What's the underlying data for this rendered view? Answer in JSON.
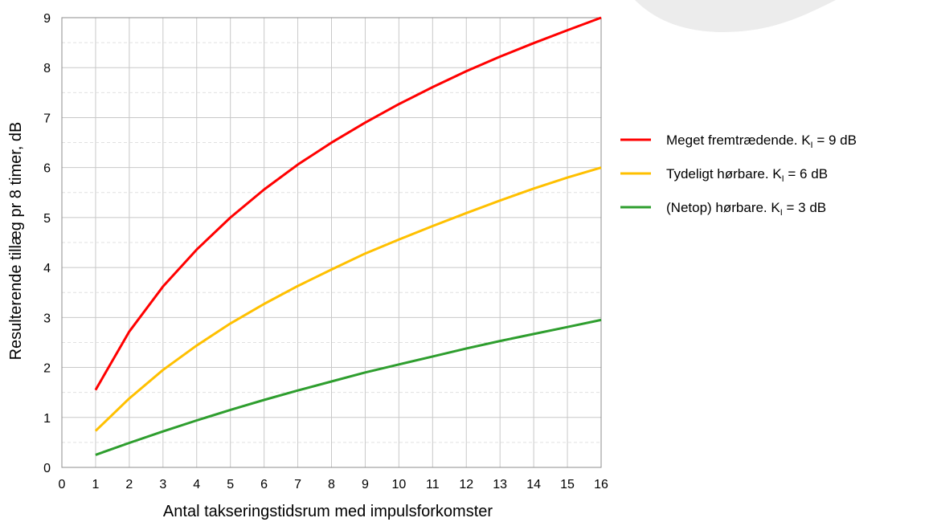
{
  "chart_data": {
    "type": "line",
    "xlabel": "Antal takseringstidsrum med impulsforkomster",
    "ylabel": "Resulterende tillæg pr 8 timer, dB",
    "xlim": [
      0,
      16
    ],
    "ylim": [
      0,
      9
    ],
    "x_ticks": [
      "0",
      "1",
      "2",
      "3",
      "4",
      "5",
      "6",
      "7",
      "8",
      "9",
      "10",
      "11",
      "12",
      "13",
      "14",
      "15",
      "16"
    ],
    "y_ticks": [
      "0",
      "1",
      "2",
      "3",
      "4",
      "5",
      "6",
      "7",
      "8",
      "9"
    ],
    "grid": true,
    "legend_position": "right",
    "x": [
      1,
      2,
      3,
      4,
      5,
      6,
      7,
      8,
      9,
      10,
      11,
      12,
      13,
      14,
      15,
      16
    ],
    "series": [
      {
        "name": "Meget fremtrædende. K",
        "name_sub": "I",
        "name_suffix": " = 9 dB",
        "color": "#ff0000",
        "values": [
          1.55,
          2.72,
          3.62,
          4.36,
          5.0,
          5.56,
          6.06,
          6.5,
          6.9,
          7.27,
          7.61,
          7.93,
          8.22,
          8.49,
          8.75,
          9.0
        ]
      },
      {
        "name": "Tydeligt hørbare. K",
        "name_sub": "I",
        "name_suffix": " = 6 dB",
        "color": "#ffc000",
        "values": [
          0.73,
          1.38,
          1.95,
          2.44,
          2.88,
          3.27,
          3.63,
          3.96,
          4.28,
          4.56,
          4.83,
          5.09,
          5.34,
          5.58,
          5.8,
          6.0
        ]
      },
      {
        "name": "(Netop) hørbare. K",
        "name_sub": "I",
        "name_suffix": " = 3 dB",
        "color": "#2e9e2e",
        "values": [
          0.25,
          0.49,
          0.72,
          0.94,
          1.15,
          1.35,
          1.54,
          1.72,
          1.9,
          2.06,
          2.22,
          2.38,
          2.53,
          2.67,
          2.81,
          2.95
        ]
      }
    ]
  }
}
